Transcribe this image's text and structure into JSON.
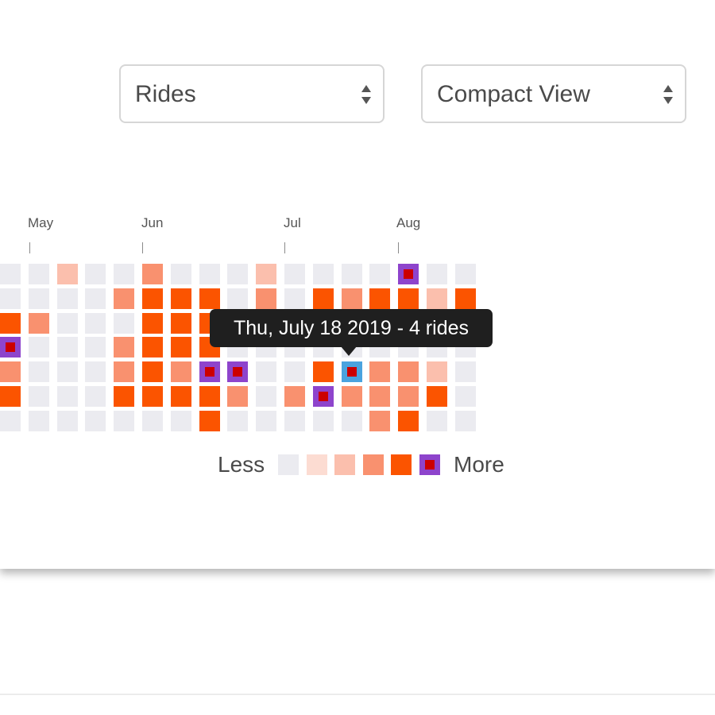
{
  "controls": {
    "metric_select": {
      "label": "Rides"
    },
    "view_select": {
      "label": "Compact View"
    }
  },
  "heatmap": {
    "months": [
      "May",
      "Jun",
      "Jul",
      "Aug"
    ],
    "levels": {
      "0": "#ebebf0",
      "1": "#fcdcd2",
      "2": "#fbbfad",
      "3": "#f9916f",
      "4": "#fb5400"
    },
    "highlight": {
      "border": "#8e44cc",
      "dot": "#cc0000",
      "selected_border": "#4aa3df"
    },
    "columns": [
      [
        0,
        0,
        4,
        5,
        3,
        4,
        0
      ],
      [
        0,
        0,
        3,
        0,
        0,
        0,
        0
      ],
      [
        2,
        0,
        0,
        0,
        0,
        0,
        0
      ],
      [
        0,
        0,
        0,
        0,
        0,
        0,
        0
      ],
      [
        0,
        3,
        0,
        3,
        3,
        4,
        0
      ],
      [
        3,
        4,
        4,
        4,
        4,
        4,
        0
      ],
      [
        0,
        4,
        4,
        4,
        3,
        4,
        0
      ],
      [
        0,
        4,
        4,
        4,
        5,
        4,
        4
      ],
      [
        0,
        0,
        0,
        0,
        5,
        3,
        0
      ],
      [
        2,
        3,
        0,
        0,
        0,
        0,
        0
      ],
      [
        0,
        0,
        0,
        0,
        0,
        3,
        0
      ],
      [
        0,
        4,
        0,
        0,
        4,
        5,
        0
      ],
      [
        0,
        3,
        0,
        0,
        6,
        3,
        0
      ],
      [
        0,
        4,
        0,
        0,
        3,
        3,
        3
      ],
      [
        5,
        4,
        0,
        0,
        3,
        3,
        4
      ],
      [
        0,
        2,
        0,
        0,
        2,
        4,
        0
      ],
      [
        0,
        4,
        0,
        0,
        0,
        0,
        0
      ]
    ],
    "tooltip": "Thu, July 18 2019 - 4 rides"
  },
  "legend": {
    "less": "Less",
    "more": "More",
    "swatches": [
      "#ebebf0",
      "#fcdcd2",
      "#fbbfad",
      "#f9916f",
      "#fb5400",
      "highlight"
    ]
  }
}
